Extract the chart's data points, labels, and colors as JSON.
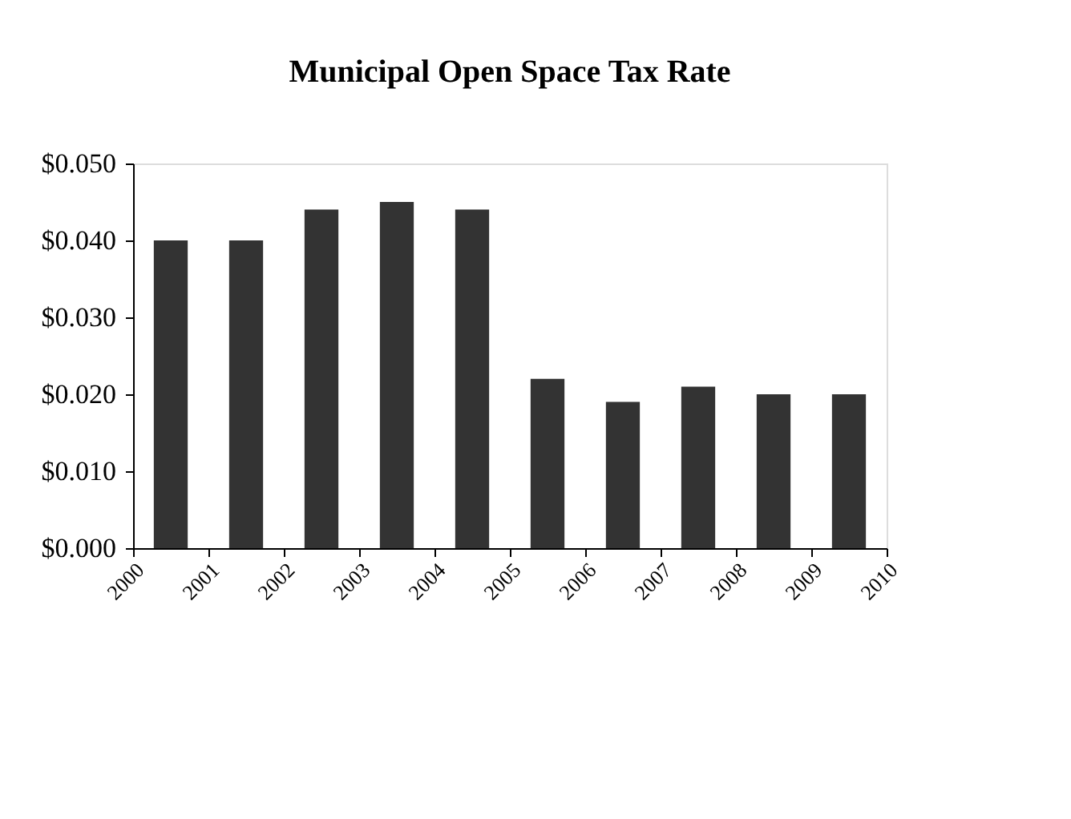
{
  "chart_data": {
    "type": "bar",
    "title": "Municipal Open Space Tax Rate",
    "x": [
      2000.5,
      2001.5,
      2002.5,
      2003.5,
      2004.5,
      2005.5,
      2006.5,
      2007.5,
      2008.5,
      2009.5
    ],
    "values": [
      0.04,
      0.04,
      0.044,
      0.045,
      0.044,
      0.022,
      0.019,
      0.021,
      0.02,
      0.02
    ],
    "color": "#333333",
    "xlim": [
      2000,
      2010
    ],
    "xticks": [
      2000,
      2001,
      2002,
      2003,
      2004,
      2005,
      2006,
      2007,
      2008,
      2009,
      2010
    ],
    "ylim": [
      0,
      0.05
    ],
    "yticks": [
      {
        "value": 0,
        "label": "$0.000"
      },
      {
        "value": 0.01,
        "label": "$0.010"
      },
      {
        "value": 0.02,
        "label": "$0.020"
      },
      {
        "value": 0.03,
        "label": "$0.030"
      },
      {
        "value": 0.04,
        "label": "$0.040"
      },
      {
        "value": 0.05,
        "label": "$0.050"
      }
    ],
    "grid": false
  }
}
